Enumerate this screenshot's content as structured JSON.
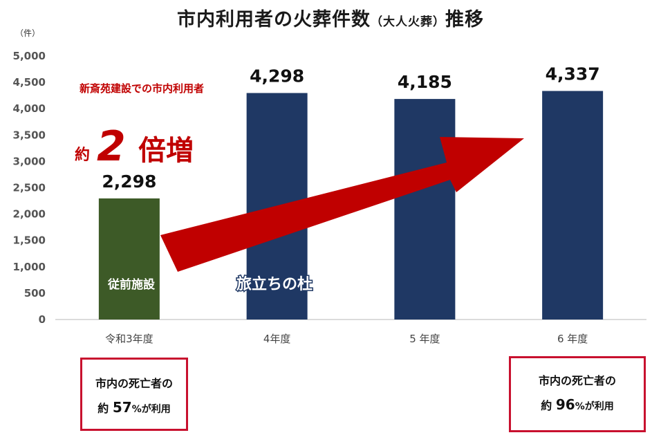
{
  "title": {
    "main": "市内利用者の火葬件数",
    "paren": "（大人火葬）",
    "tail": "推移"
  },
  "chart_data": {
    "type": "bar",
    "ylabel": "（件）",
    "ylim": [
      0,
      5000
    ],
    "yticks": [
      0,
      500,
      1000,
      1500,
      2000,
      2500,
      3000,
      3500,
      4000,
      4500,
      5000
    ],
    "ytick_labels": [
      "0",
      "500",
      "1,000",
      "1,500",
      "2,000",
      "2,500",
      "3,000",
      "3,500",
      "4,000",
      "4,500",
      "5,000"
    ],
    "categories": [
      "令和3年度",
      "4年度",
      "5 年度",
      "6 年度"
    ],
    "values": [
      2298,
      4298,
      4185,
      4337
    ],
    "value_labels": [
      "2,298",
      "4,298",
      "4,185",
      "4,337"
    ],
    "bar_colors": [
      "#3d5a27",
      "#1f3864",
      "#1f3864",
      "#1f3864"
    ],
    "grid": false,
    "annotations": {
      "old_facility": "従前施設",
      "new_facility": "旅立ちの杜",
      "growth_caption": "新斎苑建設での市内利用者",
      "growth_prefix": "約",
      "growth_number": "2",
      "growth_suffix": "倍増",
      "arrow_color": "#c00000"
    }
  },
  "boxes": {
    "left": {
      "line1": "市内の死亡者の",
      "prefix": "約",
      "number": "57",
      "pct": "%が利用"
    },
    "right": {
      "line1": "市内の死亡者の",
      "prefix": "約",
      "number": "96",
      "pct": "%が利用"
    }
  }
}
